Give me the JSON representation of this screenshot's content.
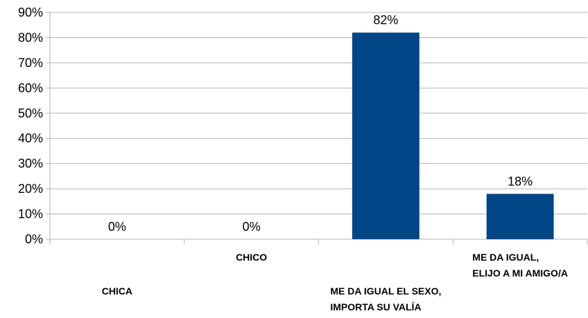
{
  "chart_data": {
    "type": "bar",
    "categories": [
      "CHICA",
      "CHICO",
      "ME DA IGUAL EL SEXO,\nIMPORTA SU VALÍA",
      "ME DA IGUAL,\nELIJO A MI AMIGO/A"
    ],
    "values": [
      0,
      0,
      82,
      18
    ],
    "value_labels": [
      "0%",
      "0%",
      "82%",
      "18%"
    ],
    "color": "#004586",
    "ylim": [
      0,
      90
    ],
    "yticks": [
      {
        "value": 0,
        "label": "0%"
      },
      {
        "value": 10,
        "label": "10%"
      },
      {
        "value": 20,
        "label": "20%"
      },
      {
        "value": 30,
        "label": "30%"
      },
      {
        "value": 40,
        "label": "40%"
      },
      {
        "value": 50,
        "label": "50%"
      },
      {
        "value": 60,
        "label": "60%"
      },
      {
        "value": 70,
        "label": "70%"
      },
      {
        "value": 80,
        "label": "80%"
      },
      {
        "value": 90,
        "label": "90%"
      }
    ],
    "grid": true
  }
}
